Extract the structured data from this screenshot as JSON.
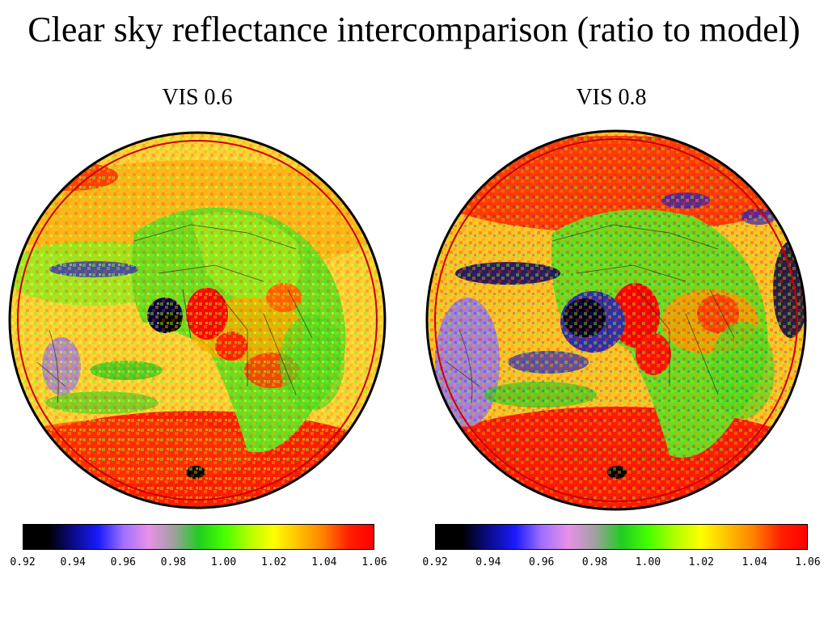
{
  "title": "Clear sky reflectance intercomparison (ratio to model)",
  "panels": [
    {
      "label": "VIS 0.6"
    },
    {
      "label": "VIS 0.8"
    }
  ],
  "colorbar": {
    "min": 0.92,
    "max": 1.06,
    "ticks": [
      "0.92",
      "0.94",
      "0.96",
      "0.98",
      "1.00",
      "1.02",
      "1.04",
      "1.06"
    ],
    "stops": [
      "#000000",
      "#000000",
      "#0b0b8a",
      "#1a1aff",
      "#a070ff",
      "#e890e8",
      "#a0a0a0",
      "#22cc22",
      "#44ff00",
      "#b0ff00",
      "#ffff00",
      "#ffc000",
      "#ff8000",
      "#ff2000",
      "#ff0000"
    ]
  },
  "colors": {
    "sea_background": "#ffd23a",
    "land_green": "#66dd22",
    "high": "#ff1a00",
    "low": "#000044",
    "violet": "#a080e0",
    "limb_circle": "#cc0000"
  }
}
